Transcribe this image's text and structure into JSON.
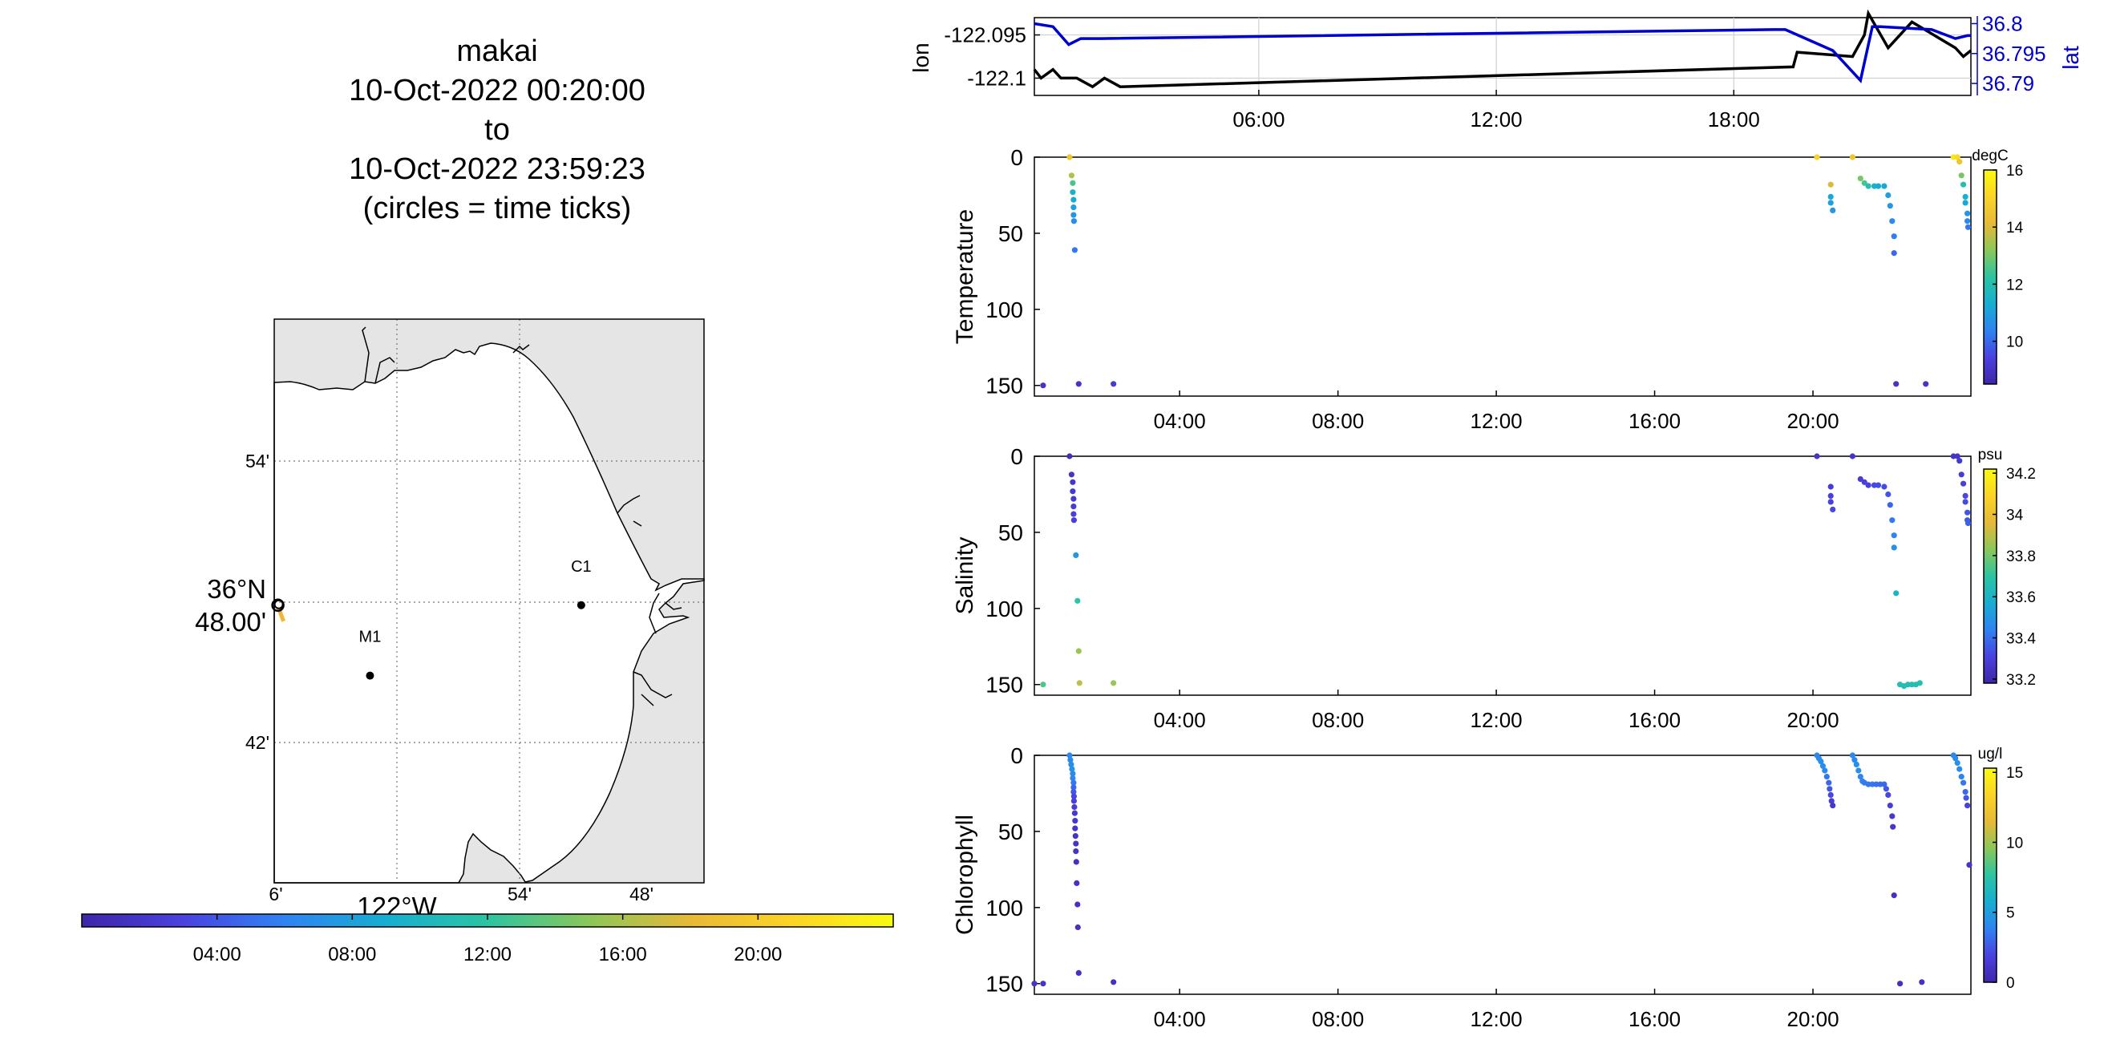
{
  "title": {
    "lines": [
      "makai",
      "10-Oct-2022 00:20:00",
      "to",
      "10-Oct-2022 23:59:23",
      "(circles = time ticks)"
    ]
  },
  "colors": {
    "lon_line": "#000000",
    "lat_line": "#0000cc",
    "land": "#e5e5e5",
    "grid": "#c8c8c8"
  },
  "colormap": [
    "#3e26a8",
    "#4a42e0",
    "#2f83f2",
    "#17aed1",
    "#2cc4a2",
    "#8bc75a",
    "#e7b937",
    "#fbd426",
    "#f9fb0e"
  ],
  "chart_data": [
    {
      "id": "map",
      "type": "scatter",
      "x_tick_labels": [
        "6'",
        "54'",
        "48'"
      ],
      "x_label": "122°W",
      "y_tick_labels": [
        "54'",
        "48.00'",
        "42'"
      ],
      "y_label": "36°N",
      "xlim": [
        -122.1,
        -121.75
      ],
      "ylim": [
        36.6,
        37.0
      ],
      "stations": [
        {
          "name": "C1",
          "lon": -121.85,
          "lat": 36.797
        },
        {
          "name": "M1",
          "lon": -122.022,
          "lat": 36.747
        }
      ],
      "track": {
        "lon": -122.097,
        "lat": 36.797
      },
      "time_colorbar": {
        "tick_labels": [
          "04:00",
          "08:00",
          "12:00",
          "16:00",
          "20:00"
        ],
        "ticks_hours": [
          4,
          8,
          12,
          16,
          20
        ],
        "range_hours": [
          0,
          24
        ]
      }
    },
    {
      "id": "position",
      "type": "line",
      "ylabel_left": "lon",
      "ylabel_right": "lat",
      "x_tick_labels": [
        "06:00",
        "12:00",
        "18:00"
      ],
      "x_ticks_hours": [
        6,
        12,
        18
      ],
      "xlim_hours": [
        0.33,
        23.99
      ],
      "left_ticks": [
        "-122.095",
        "-122.1"
      ],
      "left_ticks_values": [
        -122.095,
        -122.1
      ],
      "left_ylim": [
        -122.102,
        -122.093
      ],
      "right_ticks": [
        "36.8",
        "36.795",
        "36.79"
      ],
      "right_ticks_values": [
        36.8,
        36.795,
        36.79
      ],
      "right_ylim": [
        36.788,
        36.801
      ],
      "series": [
        {
          "axis": "left",
          "hours": [
            0.33,
            0.5,
            0.8,
            1.0,
            1.4,
            1.8,
            2.1,
            2.5,
            19.5,
            19.6,
            21.0,
            21.3,
            21.4,
            21.9,
            22.5,
            23.6,
            23.8,
            23.99
          ],
          "values": [
            -122.099,
            -122.1,
            -122.099,
            -122.1,
            -122.1,
            -122.101,
            -122.1,
            -122.101,
            -122.0987,
            -122.097,
            -122.0975,
            -122.095,
            -122.0925,
            -122.0965,
            -122.0935,
            -122.0965,
            -122.0975,
            -122.0968
          ]
        },
        {
          "axis": "right",
          "hours": [
            0.33,
            0.8,
            1.2,
            1.5,
            2.0,
            19.0,
            19.3,
            20.5,
            21.2,
            21.5,
            21.7,
            23.0,
            23.6,
            23.9,
            23.99
          ],
          "values": [
            36.8,
            36.7995,
            36.7965,
            36.7975,
            36.7975,
            36.799,
            36.799,
            36.7955,
            36.7905,
            36.7995,
            36.7995,
            36.799,
            36.7975,
            36.798,
            36.798
          ]
        }
      ]
    },
    {
      "id": "temperature",
      "type": "scatter",
      "ylabel": "Temperature",
      "colorbar_unit": "degC",
      "colorbar_ticks": [
        "16",
        "14",
        "12",
        "10"
      ],
      "colorbar_ticks_values": [
        16,
        14,
        12,
        10
      ],
      "colorbar_range": [
        8.5,
        16.0
      ],
      "y_tick_labels": [
        "0",
        "50",
        "100",
        "150"
      ],
      "y_ticks_values": [
        0,
        50,
        100,
        150
      ],
      "ylim": [
        0,
        157
      ],
      "x_tick_labels": [
        "04:00",
        "08:00",
        "12:00",
        "16:00",
        "20:00"
      ],
      "x_ticks_hours": [
        4,
        8,
        12,
        16,
        20
      ],
      "xlim_hours": [
        0.33,
        23.99
      ],
      "points": [
        [
          0.55,
          150,
          9.0
        ],
        [
          1.22,
          0,
          14.5
        ],
        [
          1.27,
          12,
          13.6
        ],
        [
          1.3,
          17,
          12.5
        ],
        [
          1.3,
          23,
          11.5
        ],
        [
          1.32,
          28,
          11.2
        ],
        [
          1.32,
          33,
          11.0
        ],
        [
          1.32,
          38,
          10.8
        ],
        [
          1.33,
          42,
          10.6
        ],
        [
          1.35,
          61,
          10.2
        ],
        [
          1.45,
          149,
          9.0
        ],
        [
          2.33,
          149,
          9.2
        ],
        [
          20.1,
          0,
          15.0
        ],
        [
          20.45,
          18,
          14.0
        ],
        [
          20.45,
          26,
          11.2
        ],
        [
          20.45,
          30,
          11.0
        ],
        [
          20.5,
          35,
          10.8
        ],
        [
          21.0,
          0,
          14.6
        ],
        [
          21.2,
          14,
          13.0
        ],
        [
          21.3,
          17,
          12.5
        ],
        [
          21.4,
          19,
          12.0
        ],
        [
          21.55,
          19,
          11.5
        ],
        [
          21.65,
          19,
          11.3
        ],
        [
          21.8,
          19,
          11.2
        ],
        [
          21.9,
          25,
          11.0
        ],
        [
          21.95,
          32,
          10.8
        ],
        [
          22.0,
          42,
          10.5
        ],
        [
          22.05,
          52,
          10.3
        ],
        [
          22.05,
          63,
          10.0
        ],
        [
          22.1,
          149,
          9.0
        ],
        [
          22.85,
          149,
          9.0
        ],
        [
          23.55,
          0,
          15.5
        ],
        [
          23.65,
          0,
          15.2
        ],
        [
          23.7,
          3,
          14.5
        ],
        [
          23.75,
          12,
          13.0
        ],
        [
          23.8,
          18,
          12.0
        ],
        [
          23.85,
          26,
          11.5
        ],
        [
          23.85,
          30,
          11.2
        ],
        [
          23.9,
          37,
          10.8
        ],
        [
          23.9,
          42,
          10.5
        ],
        [
          23.92,
          46,
          10.2
        ]
      ]
    },
    {
      "id": "salinity",
      "type": "scatter",
      "ylabel": "Salinity",
      "colorbar_unit": "psu",
      "colorbar_ticks": [
        "34.2",
        "34",
        "33.8",
        "33.6",
        "33.4",
        "33.2"
      ],
      "colorbar_ticks_values": [
        34.2,
        34.0,
        33.8,
        33.6,
        33.4,
        33.2
      ],
      "colorbar_range": [
        33.18,
        34.22
      ],
      "y_tick_labels": [
        "0",
        "50",
        "100",
        "150"
      ],
      "y_ticks_values": [
        0,
        50,
        100,
        150
      ],
      "ylim": [
        0,
        157
      ],
      "x_tick_labels": [
        "04:00",
        "08:00",
        "12:00",
        "16:00",
        "20:00"
      ],
      "x_ticks_hours": [
        4,
        8,
        12,
        16,
        20
      ],
      "xlim_hours": [
        0.33,
        23.99
      ],
      "points": [
        [
          0.55,
          150,
          33.75
        ],
        [
          1.22,
          0,
          33.22
        ],
        [
          1.27,
          12,
          33.25
        ],
        [
          1.3,
          17,
          33.26
        ],
        [
          1.3,
          23,
          33.27
        ],
        [
          1.32,
          28,
          33.27
        ],
        [
          1.32,
          33,
          33.28
        ],
        [
          1.32,
          38,
          33.3
        ],
        [
          1.33,
          42,
          33.3
        ],
        [
          1.38,
          65,
          33.5
        ],
        [
          1.42,
          95,
          33.7
        ],
        [
          1.45,
          128,
          33.85
        ],
        [
          1.47,
          149,
          33.9
        ],
        [
          2.33,
          149,
          33.85
        ],
        [
          20.1,
          0,
          33.25
        ],
        [
          20.45,
          20,
          33.28
        ],
        [
          20.45,
          26,
          33.3
        ],
        [
          20.45,
          30,
          33.3
        ],
        [
          20.5,
          35,
          33.32
        ],
        [
          21.0,
          0,
          33.25
        ],
        [
          21.2,
          15,
          33.28
        ],
        [
          21.3,
          17,
          33.3
        ],
        [
          21.4,
          19,
          33.3
        ],
        [
          21.55,
          19,
          33.32
        ],
        [
          21.65,
          19,
          33.33
        ],
        [
          21.8,
          20,
          33.33
        ],
        [
          21.9,
          25,
          33.35
        ],
        [
          21.95,
          32,
          33.38
        ],
        [
          22.0,
          42,
          33.42
        ],
        [
          22.05,
          52,
          33.45
        ],
        [
          22.05,
          60,
          33.48
        ],
        [
          22.1,
          90,
          33.6
        ],
        [
          22.2,
          150,
          33.65
        ],
        [
          22.3,
          151,
          33.65
        ],
        [
          22.4,
          150,
          33.65
        ],
        [
          22.5,
          150,
          33.66
        ],
        [
          22.6,
          150,
          33.66
        ],
        [
          22.7,
          149,
          33.67
        ],
        [
          23.55,
          0,
          33.25
        ],
        [
          23.65,
          0,
          33.25
        ],
        [
          23.7,
          3,
          33.27
        ],
        [
          23.75,
          12,
          33.28
        ],
        [
          23.8,
          18,
          33.3
        ],
        [
          23.85,
          26,
          33.32
        ],
        [
          23.85,
          30,
          33.33
        ],
        [
          23.9,
          37,
          33.35
        ],
        [
          23.9,
          42,
          33.36
        ],
        [
          23.92,
          44,
          33.37
        ]
      ]
    },
    {
      "id": "chlorophyll",
      "type": "scatter",
      "ylabel": "Chlorophyll",
      "colorbar_unit": "ug/l",
      "colorbar_ticks": [
        "15",
        "10",
        "5",
        "0"
      ],
      "colorbar_ticks_values": [
        15,
        10,
        5,
        0
      ],
      "colorbar_range": [
        0,
        15.3
      ],
      "y_tick_labels": [
        "0",
        "50",
        "100",
        "150"
      ],
      "y_ticks_values": [
        0,
        50,
        100,
        150
      ],
      "ylim": [
        0,
        157
      ],
      "x_tick_labels": [
        "04:00",
        "08:00",
        "12:00",
        "16:00",
        "20:00"
      ],
      "x_ticks_hours": [
        4,
        8,
        12,
        16,
        20
      ],
      "xlim_hours": [
        0.33,
        23.99
      ],
      "points": [
        [
          0.33,
          150,
          1.0
        ],
        [
          0.55,
          150,
          1.0
        ],
        [
          1.22,
          0,
          4.0
        ],
        [
          1.24,
          3,
          4.2
        ],
        [
          1.26,
          6,
          4.3
        ],
        [
          1.28,
          9,
          4.5
        ],
        [
          1.3,
          12,
          4.3
        ],
        [
          1.3,
          15,
          4.0
        ],
        [
          1.32,
          18,
          3.5
        ],
        [
          1.32,
          21,
          3.0
        ],
        [
          1.32,
          24,
          2.5
        ],
        [
          1.33,
          27,
          2.0
        ],
        [
          1.33,
          30,
          1.7
        ],
        [
          1.34,
          34,
          1.5
        ],
        [
          1.35,
          38,
          1.3
        ],
        [
          1.36,
          43,
          1.2
        ],
        [
          1.36,
          48,
          1.1
        ],
        [
          1.37,
          53,
          1.0
        ],
        [
          1.38,
          58,
          1.0
        ],
        [
          1.38,
          63,
          1.0
        ],
        [
          1.39,
          70,
          0.9
        ],
        [
          1.4,
          84,
          0.9
        ],
        [
          1.42,
          98,
          0.9
        ],
        [
          1.43,
          113,
          0.9
        ],
        [
          1.45,
          143,
          0.8
        ],
        [
          2.33,
          149,
          0.9
        ],
        [
          20.1,
          0,
          4.0
        ],
        [
          20.15,
          2,
          4.2
        ],
        [
          20.2,
          4,
          4.3
        ],
        [
          20.25,
          7,
          4.3
        ],
        [
          20.3,
          10,
          4.0
        ],
        [
          20.35,
          14,
          3.5
        ],
        [
          20.4,
          18,
          3.0
        ],
        [
          20.42,
          22,
          2.5
        ],
        [
          20.45,
          26,
          2.0
        ],
        [
          20.47,
          30,
          1.5
        ],
        [
          20.5,
          33,
          1.2
        ],
        [
          21.0,
          0,
          4.0
        ],
        [
          21.05,
          3,
          4.2
        ],
        [
          21.1,
          6,
          4.4
        ],
        [
          21.15,
          10,
          4.3
        ],
        [
          21.2,
          14,
          4.0
        ],
        [
          21.25,
          17,
          3.8
        ],
        [
          21.3,
          18,
          3.6
        ],
        [
          21.4,
          19,
          3.5
        ],
        [
          21.5,
          19,
          3.4
        ],
        [
          21.6,
          19,
          3.3
        ],
        [
          21.7,
          19,
          3.2
        ],
        [
          21.8,
          19,
          3.0
        ],
        [
          21.85,
          22,
          2.5
        ],
        [
          21.9,
          26,
          2.0
        ],
        [
          21.95,
          33,
          1.6
        ],
        [
          22.0,
          40,
          1.3
        ],
        [
          22.02,
          47,
          1.1
        ],
        [
          22.05,
          92,
          0.9
        ],
        [
          22.2,
          150,
          0.8
        ],
        [
          22.75,
          149,
          0.9
        ],
        [
          23.55,
          0,
          4.0
        ],
        [
          23.6,
          2,
          4.2
        ],
        [
          23.65,
          5,
          4.3
        ],
        [
          23.7,
          9,
          4.1
        ],
        [
          23.75,
          14,
          3.8
        ],
        [
          23.8,
          18,
          3.5
        ],
        [
          23.85,
          24,
          3.0
        ],
        [
          23.87,
          28,
          2.5
        ],
        [
          23.9,
          33,
          1.8
        ],
        [
          23.95,
          72,
          1.0
        ]
      ]
    }
  ]
}
